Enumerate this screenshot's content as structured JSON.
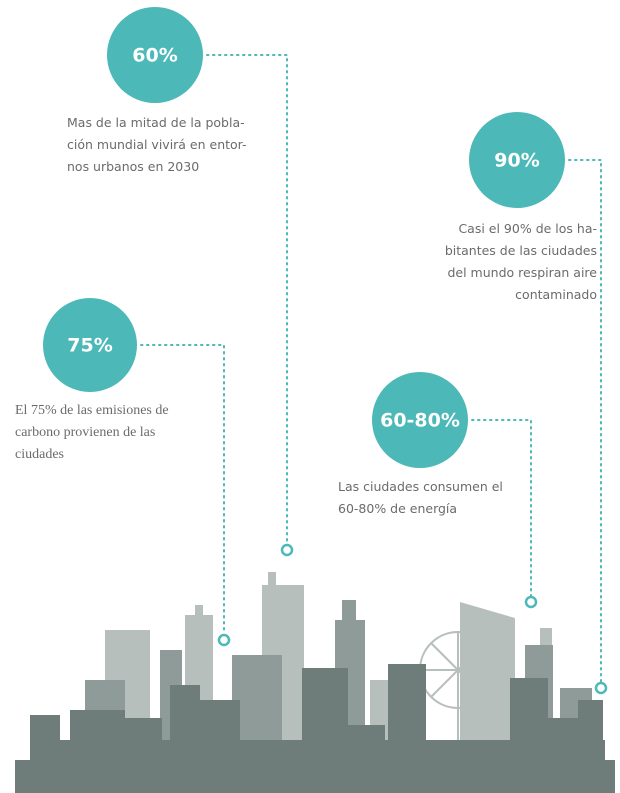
{
  "callouts": [
    {
      "label": "60%",
      "lines": [
        "Mas de la mitad de la pobla-",
        "ción mundial vivirá en entor-",
        "nos urbanos en 2030"
      ]
    },
    {
      "label": "90%",
      "lines": [
        "Casi el 90% de los ha-",
        "bitantes de las ciudades",
        "del mundo respiran aire",
        "contaminado"
      ]
    },
    {
      "label": "75%",
      "lines": [
        "El 75% de las emisiones de",
        "carbono provienen de las",
        "ciudades"
      ]
    },
    {
      "label": "60-80%",
      "lines": [
        "Las ciudades consumen el",
        "60-80% de energía"
      ]
    }
  ]
}
